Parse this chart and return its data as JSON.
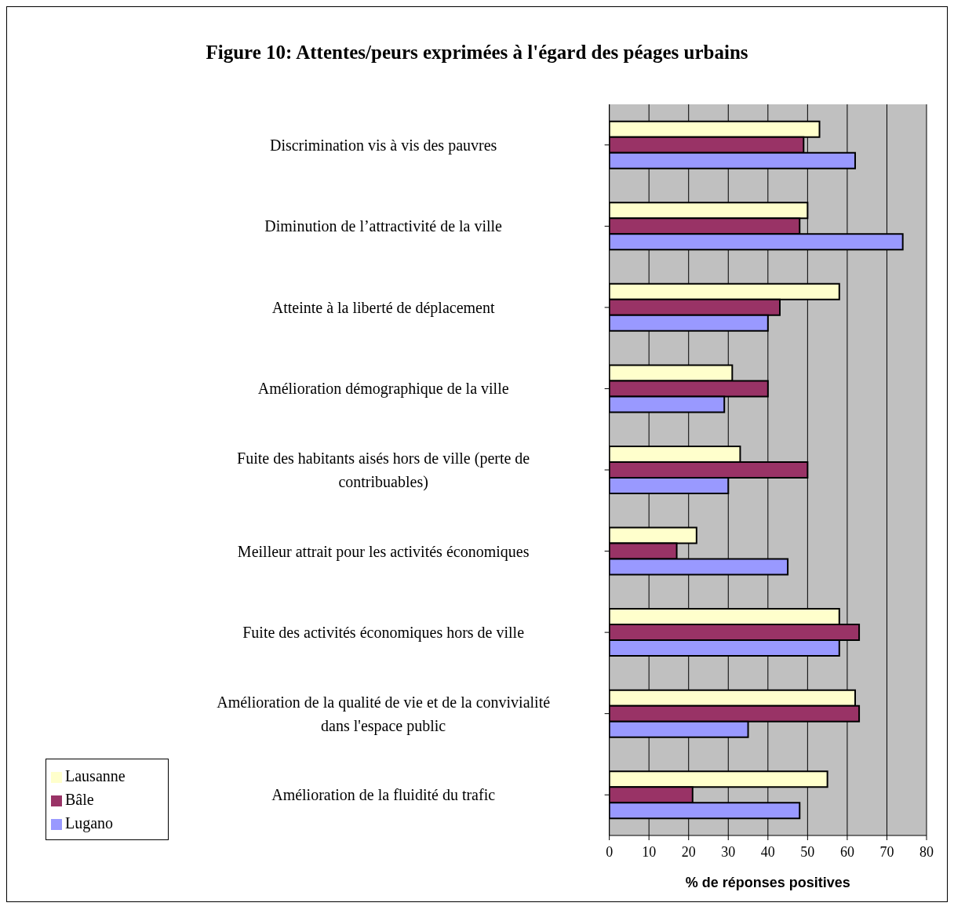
{
  "chart_data": {
    "type": "bar",
    "orientation": "horizontal",
    "title": "Figure 10: Attentes/peurs exprimées à l'égard des péages urbains",
    "xlabel": "% de réponses positives",
    "categories": [
      "Discrimination vis à vis des pauvres",
      "Diminution de l’attractivité de la ville",
      "Atteinte à la liberté de déplacement",
      "Amélioration démographique de la ville",
      "Fuite des habitants aisés hors de ville (perte de contribuables)",
      "Meilleur attrait pour les activités économiques",
      "Fuite des activités économiques hors de ville",
      "Amélioration de la qualité de vie et de la convivialité dans l'espace public",
      "Amélioration de la fluidité du trafic"
    ],
    "series": [
      {
        "name": "Lausanne",
        "color": "#ffffcc",
        "values": [
          53,
          50,
          58,
          31,
          33,
          22,
          58,
          62,
          55
        ]
      },
      {
        "name": "Bâle",
        "color": "#993366",
        "values": [
          49,
          48,
          43,
          40,
          50,
          17,
          63,
          63,
          21
        ]
      },
      {
        "name": "Lugano",
        "color": "#9999ff",
        "values": [
          62,
          74,
          40,
          29,
          30,
          45,
          58,
          35,
          48
        ]
      }
    ],
    "xlim": [
      0,
      80
    ],
    "xticks": [
      0,
      10,
      20,
      30,
      40,
      50,
      60,
      70,
      80
    ],
    "grid": "x",
    "legend": "bottom left"
  }
}
